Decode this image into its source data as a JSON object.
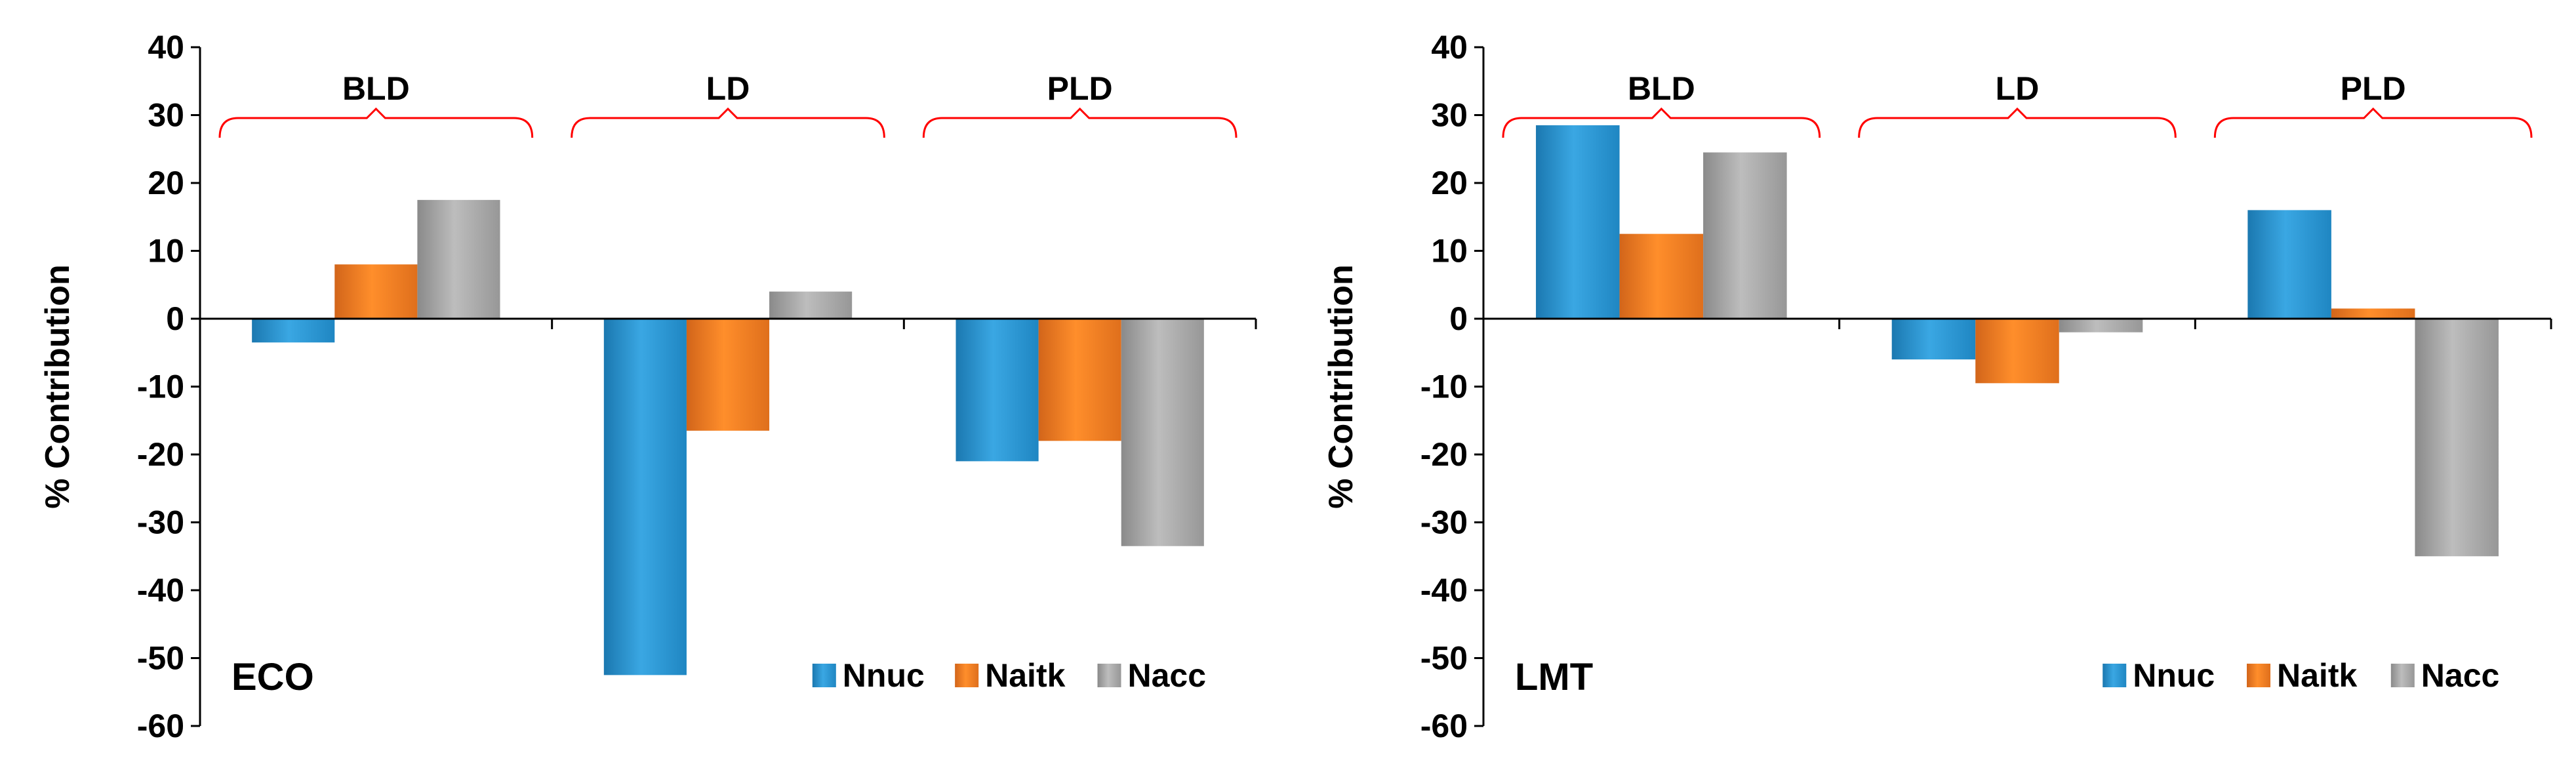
{
  "chart_data": [
    {
      "type": "bar",
      "panel_label": "ECO",
      "ylabel": "% Contribution",
      "ylim": [
        -60,
        40
      ],
      "yticks": [
        "-60",
        "-50",
        "-40",
        "-30",
        "-20",
        "-10",
        "0",
        "10",
        "20",
        "30",
        "40"
      ],
      "ytick_values": [
        -60,
        -50,
        -40,
        -30,
        -20,
        -10,
        0,
        10,
        20,
        30,
        40
      ],
      "categories": [
        "BLD",
        "LD",
        "PLD"
      ],
      "series": [
        {
          "name": "Nnuc",
          "color": "#2E9AD6",
          "values": [
            -3.5,
            -52.5,
            -21
          ]
        },
        {
          "name": "Naitk",
          "color": "#F58220",
          "values": [
            8,
            -16.5,
            -18
          ]
        },
        {
          "name": "Nacc",
          "color": "#A6A6A6",
          "values": [
            17.5,
            4,
            -33.5
          ]
        }
      ],
      "legend": [
        "Nnuc",
        "Naitk",
        "Nacc"
      ],
      "legend_position": "bottom-right"
    },
    {
      "type": "bar",
      "panel_label": "LMT",
      "ylabel": "% Contribution",
      "ylim": [
        -60,
        40
      ],
      "yticks": [
        "-60",
        "-50",
        "-40",
        "-30",
        "-20",
        "-10",
        "0",
        "10",
        "20",
        "30",
        "40"
      ],
      "ytick_values": [
        -60,
        -50,
        -40,
        -30,
        -20,
        -10,
        0,
        10,
        20,
        30,
        40
      ],
      "categories": [
        "BLD",
        "LD",
        "PLD"
      ],
      "series": [
        {
          "name": "Nnuc",
          "color": "#2E9AD6",
          "values": [
            28.5,
            -6,
            16
          ]
        },
        {
          "name": "Naitk",
          "color": "#F58220",
          "values": [
            12.5,
            -9.5,
            1.5
          ]
        },
        {
          "name": "Nacc",
          "color": "#A6A6A6",
          "values": [
            24.5,
            -2,
            -35
          ]
        }
      ],
      "legend": [
        "Nnuc",
        "Naitk",
        "Nacc"
      ],
      "legend_position": "bottom-right"
    }
  ],
  "colors": {
    "bracket": "#FF0000",
    "axis": "#000000"
  }
}
